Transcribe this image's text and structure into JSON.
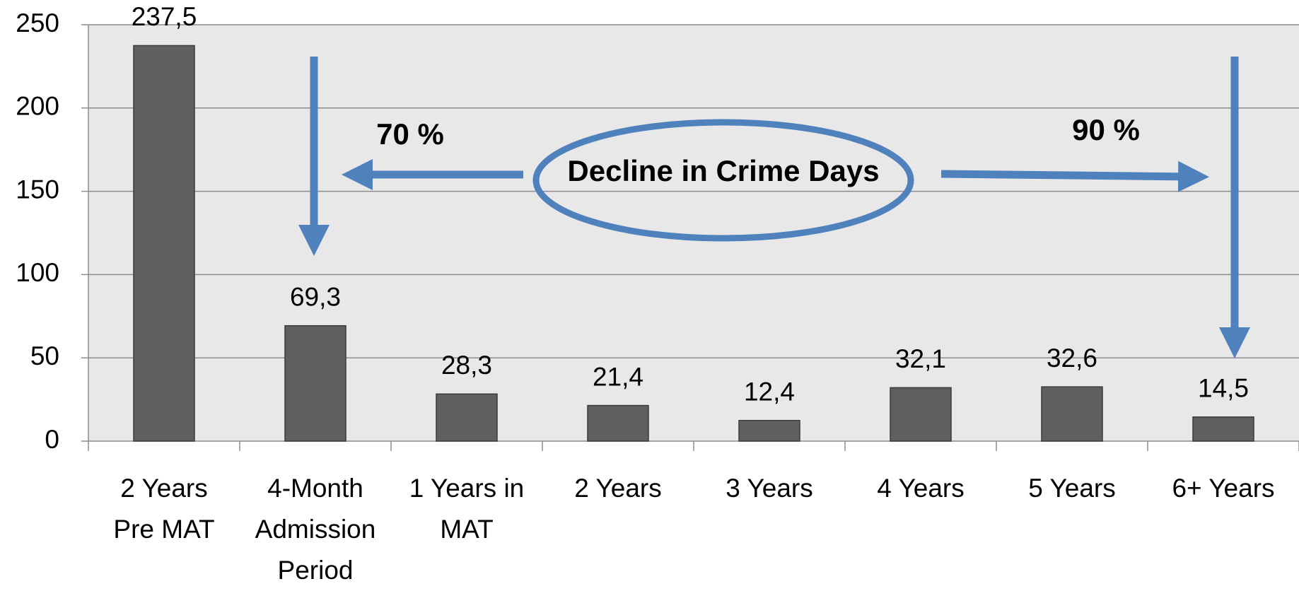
{
  "chart_data": {
    "type": "bar",
    "categories": [
      "2 Years Pre MAT",
      "4-Month Admission Period",
      "1 Years in MAT",
      "2 Years",
      "3 Years",
      "4 Years",
      "5 Years",
      "6+ Years"
    ],
    "values": [
      237.5,
      69.3,
      28.3,
      21.4,
      12.4,
      32.1,
      32.6,
      14.5
    ],
    "value_labels": [
      "237,5",
      "69,3",
      "28,3",
      "21,4",
      "12,4",
      "32,1",
      "32,6",
      "14,5"
    ],
    "color": "#5f5f5f",
    "ylim": [
      0,
      250
    ],
    "yticks": [
      0,
      50,
      100,
      150,
      200,
      250
    ],
    "grid": true,
    "annotations": [
      "70 %",
      "Decline in Crime Days",
      "90 %"
    ]
  }
}
